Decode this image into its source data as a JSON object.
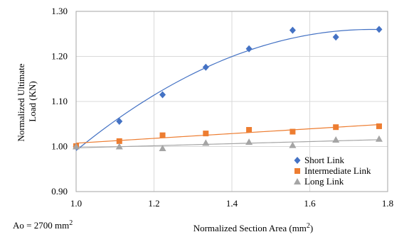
{
  "chart_data": {
    "type": "scatter",
    "title": "",
    "xlabel": "Normalized Section Area (mm",
    "xlabel_sup": "2",
    "xlabel_end": ")",
    "ylabel_lines": [
      "Normalized Ultimate",
      "Load (KN)"
    ],
    "xlim": [
      1.0,
      1.8
    ],
    "ylim": [
      0.9,
      1.3
    ],
    "x_ticks": [
      "1.0",
      "1.2",
      "1.4",
      "1.6",
      "1.8"
    ],
    "y_ticks": [
      "0.90",
      "1.00",
      "1.10",
      "1.20",
      "1.30"
    ],
    "grid": true,
    "legend_position": "bottom-right",
    "note": {
      "text": "Ao = 2700 mm",
      "sup": "2"
    },
    "series": [
      {
        "name": "Short Link",
        "marker": "diamond",
        "color": "#4472C4",
        "x": [
          1.0,
          1.111,
          1.222,
          1.333,
          1.444,
          1.556,
          1.667,
          1.778
        ],
        "y": [
          1.0,
          1.056,
          1.115,
          1.176,
          1.217,
          1.258,
          1.243,
          1.26
        ],
        "trend": "poly2"
      },
      {
        "name": "Intermediate Link",
        "marker": "square",
        "color": "#ED7D31",
        "x": [
          1.0,
          1.111,
          1.222,
          1.333,
          1.444,
          1.556,
          1.667,
          1.778
        ],
        "y": [
          1.001,
          1.012,
          1.025,
          1.029,
          1.037,
          1.033,
          1.043,
          1.045
        ],
        "trend": "linear"
      },
      {
        "name": "Long Link",
        "marker": "triangle",
        "color": "#A5A5A5",
        "x": [
          1.0,
          1.111,
          1.222,
          1.333,
          1.444,
          1.556,
          1.667,
          1.778
        ],
        "y": [
          1.0,
          1.0,
          0.996,
          1.008,
          1.01,
          1.003,
          1.015,
          1.017
        ],
        "trend": "linear"
      }
    ]
  }
}
